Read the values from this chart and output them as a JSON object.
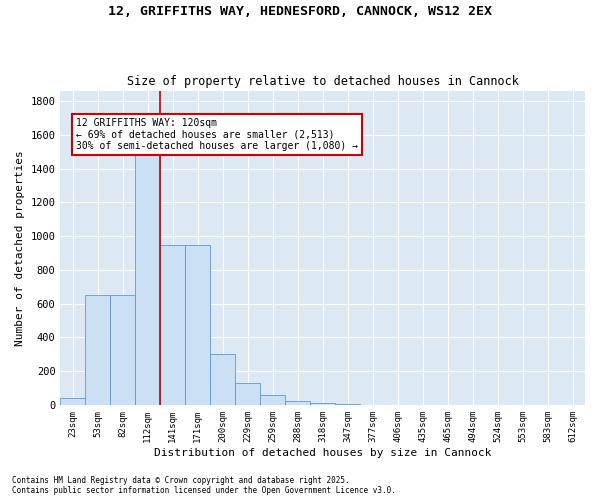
{
  "title": "12, GRIFFITHS WAY, HEDNESFORD, CANNOCK, WS12 2EX",
  "subtitle": "Size of property relative to detached houses in Cannock",
  "xlabel": "Distribution of detached houses by size in Cannock",
  "ylabel": "Number of detached properties",
  "bar_color": "#cce0f5",
  "bar_edge_color": "#5b9bd5",
  "background_color": "#dde8f5",
  "grid_color": "#ffffff",
  "categories": [
    "23sqm",
    "53sqm",
    "82sqm",
    "112sqm",
    "141sqm",
    "171sqm",
    "200sqm",
    "229sqm",
    "259sqm",
    "288sqm",
    "318sqm",
    "347sqm",
    "377sqm",
    "406sqm",
    "435sqm",
    "465sqm",
    "494sqm",
    "524sqm",
    "553sqm",
    "583sqm",
    "612sqm"
  ],
  "values": [
    40,
    650,
    650,
    1500,
    950,
    950,
    300,
    130,
    60,
    25,
    10,
    5,
    0,
    0,
    0,
    0,
    0,
    0,
    0,
    0,
    0
  ],
  "ylim": [
    0,
    1860
  ],
  "yticks": [
    0,
    200,
    400,
    600,
    800,
    1000,
    1200,
    1400,
    1600,
    1800
  ],
  "vline_x": 3.5,
  "vline_color": "#cc0000",
  "annotation_lines": [
    "12 GRIFFITHS WAY: 120sqm",
    "← 69% of detached houses are smaller (2,513)",
    "30% of semi-detached houses are larger (1,080) →"
  ],
  "annotation_box_color": "#cc0000",
  "footnote1": "Contains HM Land Registry data © Crown copyright and database right 2025.",
  "footnote2": "Contains public sector information licensed under the Open Government Licence v3.0."
}
